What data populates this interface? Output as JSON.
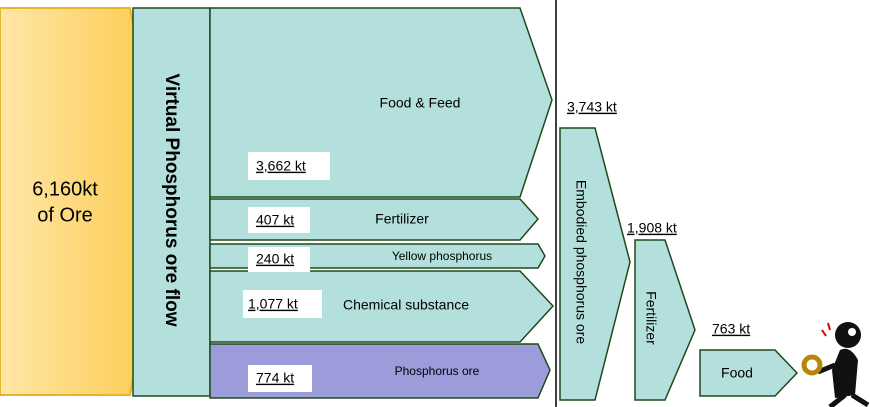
{
  "ore": {
    "line1": "6,160kt",
    "line2": "of Ore"
  },
  "virtual_flow": {
    "title": "Virtual Phosphorus ore flow"
  },
  "branches": [
    {
      "name": "Food & Feed",
      "amount": "3,662 kt"
    },
    {
      "name": "Fertilizer",
      "amount": "407 kt"
    },
    {
      "name": "Yellow phosphorus",
      "amount": "240 kt"
    },
    {
      "name": "Chemical  substance",
      "amount": "1,077 kt"
    },
    {
      "name": "Phosphorus ore",
      "amount": "774 kt"
    }
  ],
  "embodied": {
    "amount": "3,743 kt",
    "label": "Embodied phosphorus ore"
  },
  "fertilizer": {
    "amount": "1,908 kt",
    "label": "Fertilizer"
  },
  "food": {
    "amount": "763 kt",
    "label": "Food"
  }
}
